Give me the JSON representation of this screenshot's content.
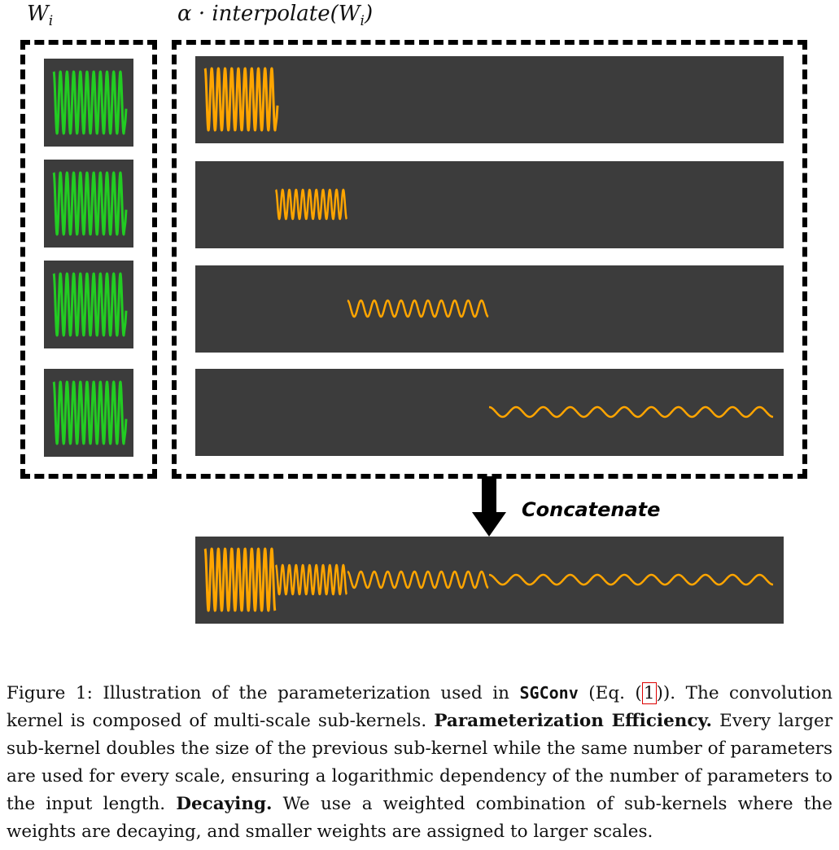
{
  "labels": {
    "left": "W",
    "left_sub": "i",
    "right_prefix": "α · interpolate(W",
    "right_sub": "i",
    "right_suffix": ")",
    "concatenate": "Concatenate"
  },
  "colors": {
    "panel_bg": "#3c3c3c",
    "green_wave": "#22cc22",
    "orange_wave": "#ffa500",
    "dash": "#000000"
  },
  "caption": {
    "fig": "Figure 1:",
    "t1": " Illustration of the parameterization used in ",
    "code": "SGConv",
    "t2": " (Eq. (",
    "eqref": "1",
    "t3": ")). The convolution kernel is composed of multi-scale sub-kernels. ",
    "b1": "Parameterization Efficiency.",
    "t4": " Every larger sub-kernel doubles the size of the previous sub-kernel while the same number of parameters are used for every scale, ensuring a logarithmic dependency of the number of parameters to the input length. ",
    "b2": "Decaying.",
    "t5": " We use a weighted combination of sub-kernels where the weights are decaying, and smaller weights are assigned to larger scales."
  }
}
